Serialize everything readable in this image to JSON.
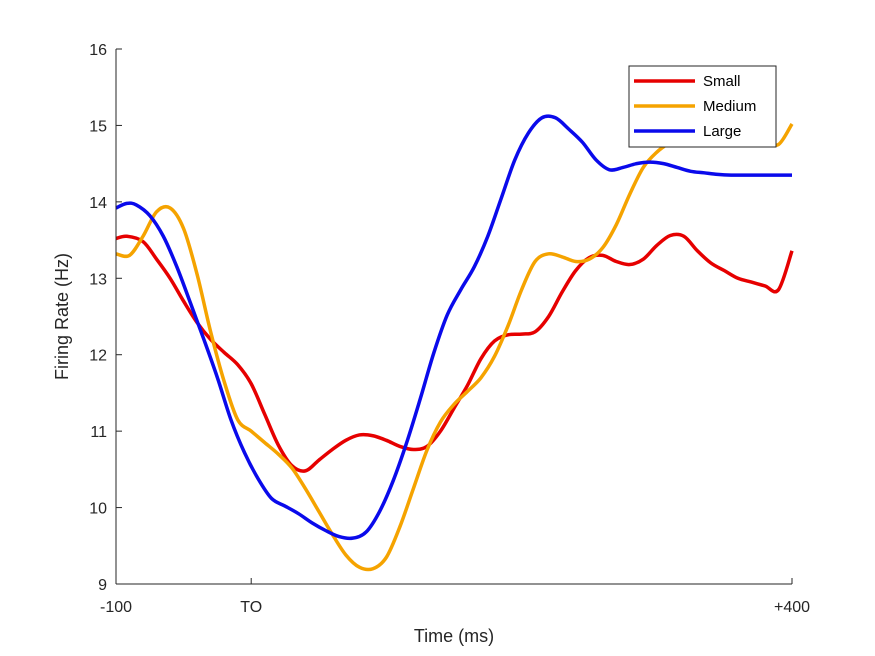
{
  "chart_data": {
    "type": "line",
    "xlabel": "Time (ms)",
    "ylabel": "Firing Rate (Hz)",
    "xlim": [
      -100,
      400
    ],
    "ylim": [
      9,
      16
    ],
    "xticks": [
      -100,
      0,
      400
    ],
    "xtick_labels": [
      "-100",
      "TO",
      "+400"
    ],
    "yticks": [
      9,
      10,
      11,
      12,
      13,
      14,
      15,
      16
    ],
    "ytick_labels": [
      "9",
      "10",
      "11",
      "12",
      "13",
      "14",
      "15",
      "16"
    ],
    "grid": false,
    "legend_position": "top-right",
    "series": [
      {
        "name": "Small",
        "color": "#e60000",
        "x": [
          -100,
          -92,
          -80,
          -70,
          -60,
          -50,
          -40,
          -30,
          -20,
          -10,
          0,
          10,
          20,
          30,
          40,
          50,
          60,
          70,
          80,
          90,
          100,
          110,
          120,
          130,
          140,
          150,
          160,
          170,
          180,
          190,
          200,
          210,
          220,
          230,
          240,
          250,
          260,
          270,
          280,
          290,
          300,
          310,
          320,
          330,
          340,
          350,
          360,
          370,
          380,
          390,
          400
        ],
        "y": [
          13.52,
          13.55,
          13.48,
          13.25,
          13.0,
          12.7,
          12.42,
          12.2,
          12.03,
          11.87,
          11.62,
          11.22,
          10.82,
          10.55,
          10.48,
          10.62,
          10.76,
          10.88,
          10.95,
          10.94,
          10.88,
          10.8,
          10.76,
          10.8,
          11.0,
          11.3,
          11.6,
          11.95,
          12.18,
          12.26,
          12.27,
          12.3,
          12.5,
          12.82,
          13.1,
          13.27,
          13.3,
          13.22,
          13.18,
          13.25,
          13.43,
          13.56,
          13.55,
          13.36,
          13.2,
          13.1,
          13.0,
          12.95,
          12.9,
          12.85,
          13.36
        ]
      },
      {
        "name": "Medium",
        "color": "#f5a300",
        "x": [
          -100,
          -90,
          -80,
          -70,
          -60,
          -50,
          -40,
          -30,
          -20,
          -10,
          0,
          10,
          20,
          30,
          40,
          50,
          60,
          70,
          80,
          90,
          100,
          110,
          120,
          130,
          140,
          150,
          160,
          170,
          180,
          190,
          200,
          210,
          220,
          230,
          240,
          250,
          260,
          270,
          280,
          290,
          300,
          310,
          320,
          330,
          340,
          350,
          360,
          370,
          380,
          390,
          400
        ],
        "y": [
          13.32,
          13.3,
          13.55,
          13.87,
          13.92,
          13.65,
          13.05,
          12.3,
          11.65,
          11.15,
          11.0,
          10.85,
          10.7,
          10.52,
          10.25,
          9.95,
          9.65,
          9.38,
          9.22,
          9.2,
          9.35,
          9.75,
          10.25,
          10.75,
          11.12,
          11.35,
          11.52,
          11.7,
          11.98,
          12.38,
          12.85,
          13.22,
          13.32,
          13.28,
          13.22,
          13.25,
          13.4,
          13.7,
          14.1,
          14.45,
          14.65,
          14.78,
          14.88,
          15.02,
          15.0,
          14.95,
          14.9,
          14.85,
          14.8,
          14.75,
          15.02
        ]
      },
      {
        "name": "Large",
        "color": "#0a0aeb",
        "x": [
          -100,
          -92,
          -85,
          -75,
          -65,
          -55,
          -45,
          -35,
          -25,
          -15,
          -5,
          5,
          15,
          25,
          35,
          45,
          55,
          65,
          75,
          85,
          95,
          105,
          115,
          125,
          135,
          145,
          155,
          165,
          175,
          185,
          195,
          205,
          215,
          225,
          235,
          245,
          255,
          265,
          275,
          285,
          295,
          305,
          315,
          325,
          335,
          345,
          355,
          365,
          375,
          385,
          400
        ],
        "y": [
          13.92,
          13.98,
          13.96,
          13.82,
          13.55,
          13.15,
          12.68,
          12.2,
          11.7,
          11.15,
          10.72,
          10.38,
          10.12,
          10.02,
          9.92,
          9.8,
          9.7,
          9.62,
          9.6,
          9.68,
          9.95,
          10.35,
          10.85,
          11.42,
          12.02,
          12.52,
          12.85,
          13.15,
          13.55,
          14.05,
          14.55,
          14.9,
          15.1,
          15.1,
          14.95,
          14.78,
          14.55,
          14.42,
          14.45,
          14.5,
          14.52,
          14.5,
          14.45,
          14.4,
          14.38,
          14.36,
          14.35,
          14.35,
          14.35,
          14.35,
          14.35
        ]
      }
    ]
  }
}
